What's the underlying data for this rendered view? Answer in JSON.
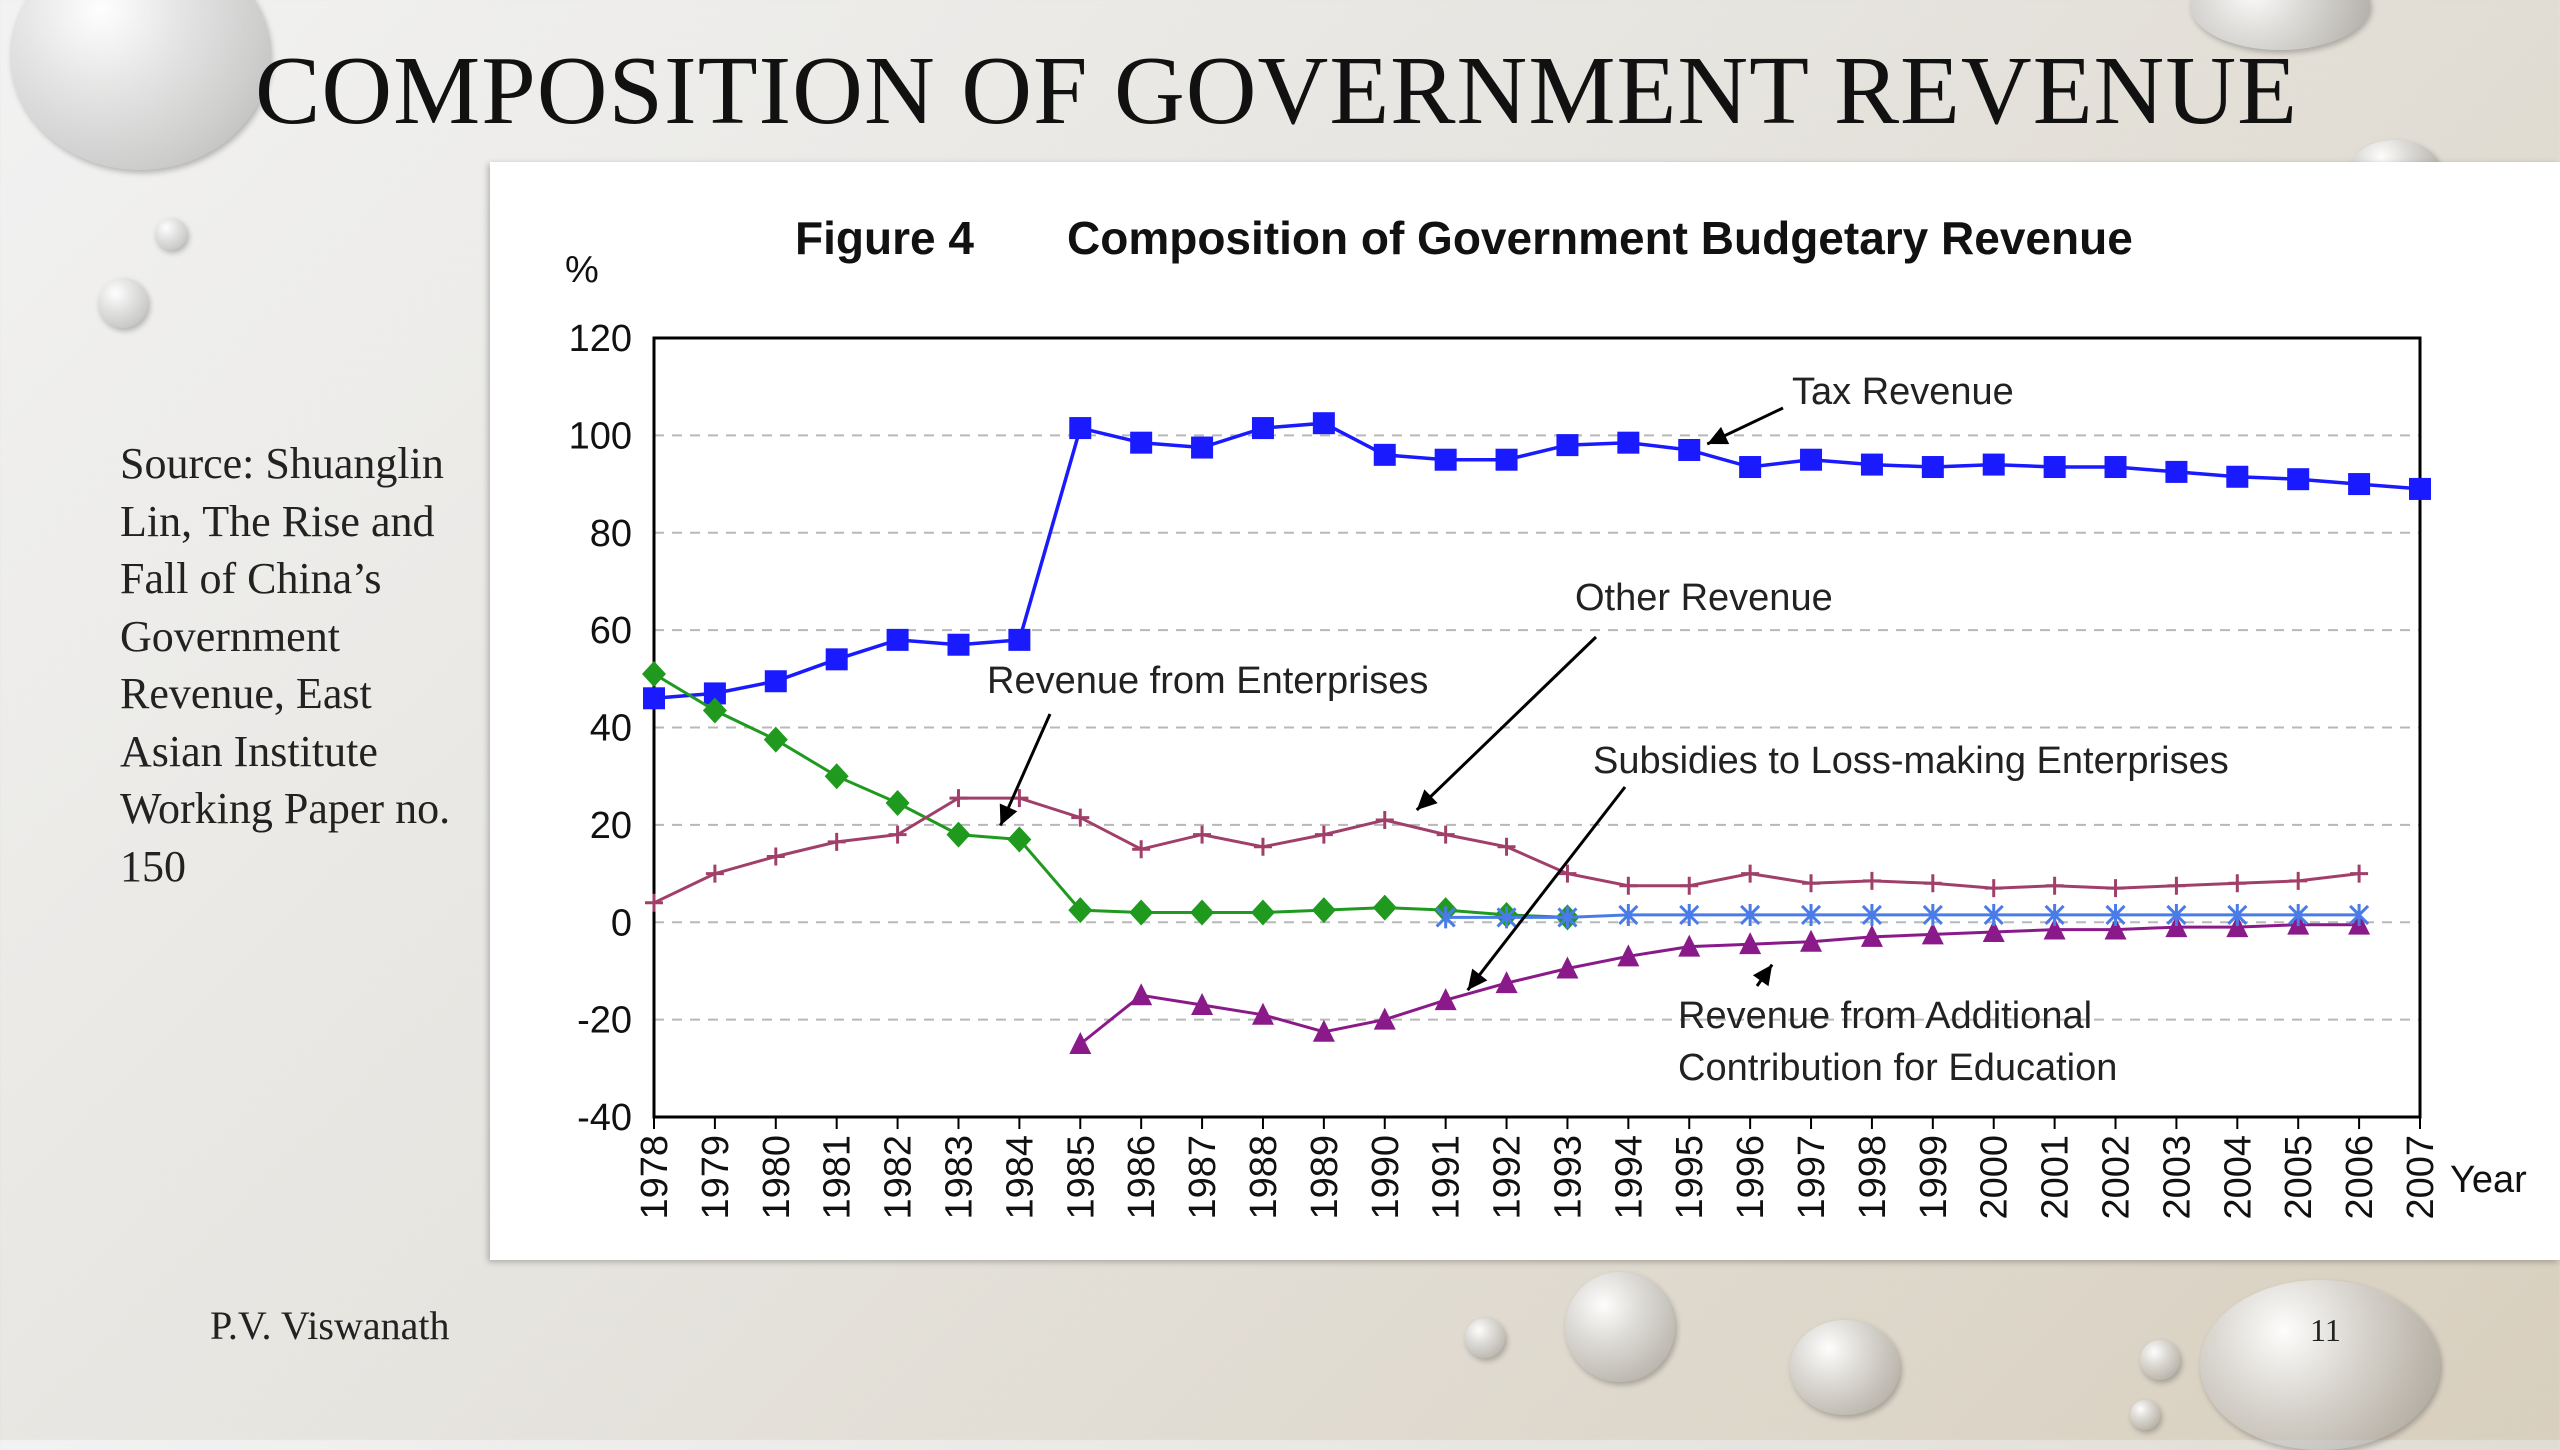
{
  "slide": {
    "title": "COMPOSITION OF GOVERNMENT REVENUE",
    "source": "Source: Shuanglin Lin, The Rise and Fall of China’s Government Revenue, East Asian Institute Working Paper no. 150",
    "author": "P.V. Viswanath",
    "page_number": "11"
  },
  "chart_data": {
    "type": "line",
    "figure_label": "Figure 4",
    "title": "Composition of Government Budgetary Revenue",
    "ylabel": "%",
    "xlabel": "Year",
    "ylim": [
      -40,
      120
    ],
    "yticks": [
      -40,
      -20,
      0,
      20,
      40,
      60,
      80,
      100,
      120
    ],
    "grid": "dashed horizontal",
    "x": [
      1978,
      1979,
      1980,
      1981,
      1982,
      1983,
      1984,
      1985,
      1986,
      1987,
      1988,
      1989,
      1990,
      1991,
      1992,
      1993,
      1994,
      1995,
      1996,
      1997,
      1998,
      1999,
      2000,
      2001,
      2002,
      2003,
      2004,
      2005,
      2006,
      2007
    ],
    "series": [
      {
        "name": "Tax Revenue",
        "color": "#1a1aff",
        "marker": "square",
        "values": [
          46,
          47,
          49.5,
          54,
          58,
          57,
          58,
          101.5,
          98.5,
          97.5,
          101.5,
          102.5,
          96,
          95,
          95,
          98,
          98.5,
          97,
          93.5,
          95,
          94,
          93.5,
          94,
          93.5,
          93.5,
          92.5,
          91.5,
          91,
          90,
          89
        ]
      },
      {
        "name": "Revenue from Enterprises",
        "color": "#1f9a1f",
        "marker": "diamond",
        "values": [
          51,
          43.5,
          37.5,
          30,
          24.5,
          18,
          17,
          2.5,
          2,
          2,
          2,
          2.5,
          3,
          2.5,
          1.5,
          1,
          null,
          null,
          null,
          null,
          null,
          null,
          null,
          null,
          null,
          null,
          null,
          null,
          null,
          null
        ]
      },
      {
        "name": "Other Revenue",
        "color": "#a0406a",
        "marker": "plus",
        "values": [
          4,
          10,
          13.5,
          16.5,
          18,
          25.5,
          25.5,
          21.5,
          15,
          18,
          15.5,
          18,
          21,
          18,
          15.5,
          10,
          7.5,
          7.5,
          10,
          8,
          8.5,
          8,
          7,
          7.5,
          7,
          7.5,
          8,
          8.5,
          10,
          null
        ]
      },
      {
        "name": "Subsidies to Loss-making Enterprises",
        "color": "#8a1a8a",
        "marker": "triangle",
        "values": [
          null,
          null,
          null,
          null,
          null,
          null,
          null,
          -25,
          -15,
          -17,
          -19,
          -22.5,
          -20,
          -16,
          -12.5,
          -9.5,
          -7,
          -5,
          -4.5,
          -4,
          -3,
          -2.5,
          -2,
          -1.5,
          -1.5,
          -1,
          -1,
          -0.5,
          -0.5,
          null
        ]
      },
      {
        "name": "Revenue from Additional Contribution for Education",
        "color": "#4a7ce8",
        "marker": "star",
        "values": [
          null,
          null,
          null,
          null,
          null,
          null,
          null,
          null,
          null,
          null,
          null,
          null,
          null,
          1,
          1,
          1,
          1.5,
          1.5,
          1.5,
          1.5,
          1.5,
          1.5,
          1.5,
          1.5,
          1.5,
          1.5,
          1.5,
          1.5,
          1.5,
          null
        ]
      }
    ],
    "annotations": [
      {
        "text": "Tax Revenue"
      },
      {
        "text": "Other Revenue"
      },
      {
        "text": "Revenue from Enterprises"
      },
      {
        "text": "Subsidies to Loss-making Enterprises"
      },
      {
        "text": "Revenue from Additional",
        "text2": "Contribution for Education"
      }
    ]
  }
}
